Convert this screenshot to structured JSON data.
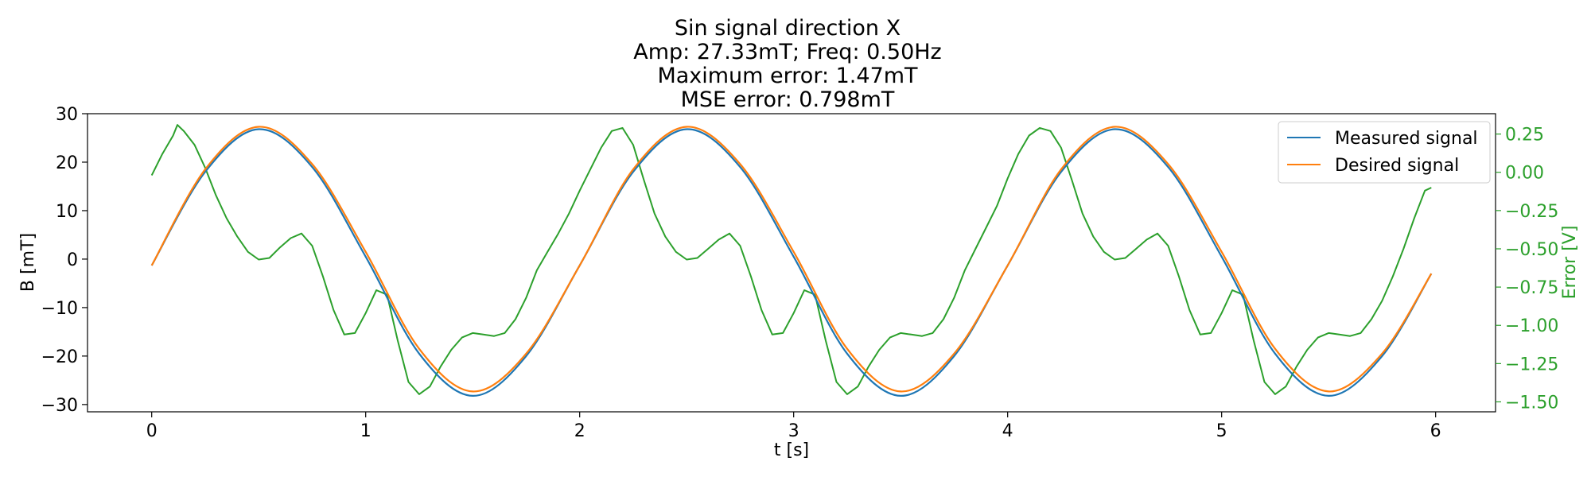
{
  "chart_data": {
    "type": "line",
    "title_lines": [
      "Sin signal direction X",
      "Amp: 27.33mT; Freq: 0.50Hz",
      "Maximum error: 1.47mT",
      "MSE error: 0.798mT"
    ],
    "xlabel": "t [s]",
    "ylabel": "B [mT]",
    "y2label": "Error [V]",
    "xlim": [
      -0.3,
      6.28
    ],
    "ylim": [
      -31.5,
      30
    ],
    "y2lim": [
      -1.565,
      0.383
    ],
    "xticks": [
      "0",
      "1",
      "2",
      "3",
      "4",
      "5",
      "6"
    ],
    "yticks": [
      "30",
      "20",
      "10",
      "0",
      "−10",
      "−20",
      "−30"
    ],
    "y2ticks": [
      "0.25",
      "0.00",
      "−0.25",
      "−0.50",
      "−0.75",
      "−1.00",
      "−1.25",
      "−1.50"
    ],
    "grid": false,
    "legend_position": "top-right",
    "colors": {
      "measured": "#1f77b4",
      "desired": "#ff7f0e",
      "error": "#2ca02c"
    },
    "series": [
      {
        "name": "Measured signal",
        "axis": "left",
        "x": [
          0,
          0.25,
          0.5,
          0.75,
          1.0,
          1.25,
          1.5,
          1.75,
          2.0,
          2.25,
          2.5,
          2.75,
          3.0,
          3.25,
          3.5,
          3.75,
          4.0,
          4.25,
          4.5,
          4.75,
          5.0,
          5.25,
          5.5,
          5.75,
          5.98
        ],
        "y": [
          -1.3,
          18.0,
          26.8,
          19.0,
          0.5,
          -19.5,
          -28.2,
          -20.0,
          -1.3,
          18.0,
          26.8,
          19.0,
          0.5,
          -19.5,
          -28.2,
          -20.0,
          -1.3,
          18.0,
          26.8,
          19.0,
          0.5,
          -19.5,
          -28.2,
          -20.0,
          -3.0
        ]
      },
      {
        "name": "Desired signal",
        "axis": "left",
        "x": [
          0,
          0.25,
          0.5,
          0.75,
          1.0,
          1.25,
          1.5,
          1.75,
          2.0,
          2.25,
          2.5,
          2.75,
          3.0,
          3.25,
          3.5,
          3.75,
          4.0,
          4.25,
          4.5,
          4.75,
          5.0,
          5.25,
          5.5,
          5.75,
          5.98
        ],
        "y": [
          -1.3,
          18.5,
          27.3,
          19.6,
          1.5,
          -18.5,
          -27.3,
          -19.5,
          -1.3,
          18.5,
          27.3,
          19.6,
          1.5,
          -18.5,
          -27.3,
          -19.5,
          -1.3,
          18.5,
          27.3,
          19.6,
          1.5,
          -18.5,
          -27.3,
          -19.5,
          -3.0
        ]
      },
      {
        "name": "Error",
        "axis": "right",
        "x": [
          0,
          0.05,
          0.1,
          0.12,
          0.15,
          0.2,
          0.25,
          0.3,
          0.35,
          0.4,
          0.45,
          0.5,
          0.55,
          0.6,
          0.65,
          0.7,
          0.75,
          0.8,
          0.85,
          0.9,
          0.95,
          1.0,
          1.05,
          1.1,
          1.15,
          1.2,
          1.25,
          1.3,
          1.35,
          1.4,
          1.45,
          1.5,
          1.55,
          1.6,
          1.65,
          1.7,
          1.75,
          1.8,
          1.85,
          1.9,
          1.95,
          2.0,
          2.05,
          2.1,
          2.15,
          2.2,
          2.25,
          2.3,
          2.35,
          2.4,
          2.45,
          2.5,
          2.55,
          2.6,
          2.65,
          2.7,
          2.75,
          2.8,
          2.85,
          2.9,
          2.95,
          3.0,
          3.05,
          3.1,
          3.15,
          3.2,
          3.25,
          3.3,
          3.35,
          3.4,
          3.45,
          3.5,
          3.55,
          3.6,
          3.65,
          3.7,
          3.75,
          3.8,
          3.85,
          3.9,
          3.95,
          4.0,
          4.05,
          4.1,
          4.15,
          4.2,
          4.25,
          4.3,
          4.35,
          4.4,
          4.45,
          4.5,
          4.55,
          4.6,
          4.65,
          4.7,
          4.75,
          4.8,
          4.85,
          4.9,
          4.95,
          5.0,
          5.05,
          5.1,
          5.15,
          5.2,
          5.25,
          5.3,
          5.35,
          5.4,
          5.45,
          5.5,
          5.55,
          5.6,
          5.65,
          5.7,
          5.75,
          5.8,
          5.85,
          5.9,
          5.95,
          5.98
        ],
        "y": [
          -0.02,
          0.12,
          0.24,
          0.31,
          0.27,
          0.18,
          0.03,
          -0.15,
          -0.3,
          -0.42,
          -0.52,
          -0.57,
          -0.56,
          -0.49,
          -0.43,
          -0.4,
          -0.48,
          -0.68,
          -0.9,
          -1.06,
          -1.05,
          -0.92,
          -0.77,
          -0.8,
          -1.1,
          -1.37,
          -1.45,
          -1.4,
          -1.27,
          -1.16,
          -1.08,
          -1.05,
          -1.06,
          -1.07,
          -1.05,
          -0.96,
          -0.82,
          -0.64,
          -0.52,
          -0.4,
          -0.27,
          -0.12,
          0.02,
          0.16,
          0.27,
          0.29,
          0.18,
          -0.05,
          -0.27,
          -0.42,
          -0.52,
          -0.57,
          -0.56,
          -0.5,
          -0.44,
          -0.4,
          -0.48,
          -0.68,
          -0.9,
          -1.06,
          -1.05,
          -0.92,
          -0.77,
          -0.8,
          -1.1,
          -1.37,
          -1.45,
          -1.4,
          -1.27,
          -1.16,
          -1.08,
          -1.05,
          -1.06,
          -1.07,
          -1.05,
          -0.96,
          -0.82,
          -0.64,
          -0.5,
          -0.36,
          -0.22,
          -0.04,
          0.12,
          0.24,
          0.29,
          0.27,
          0.16,
          -0.05,
          -0.27,
          -0.42,
          -0.52,
          -0.57,
          -0.56,
          -0.5,
          -0.44,
          -0.4,
          -0.48,
          -0.68,
          -0.9,
          -1.06,
          -1.05,
          -0.92,
          -0.77,
          -0.8,
          -1.1,
          -1.37,
          -1.45,
          -1.4,
          -1.27,
          -1.16,
          -1.08,
          -1.05,
          -1.06,
          -1.07,
          -1.05,
          -0.96,
          -0.84,
          -0.68,
          -0.5,
          -0.3,
          -0.12,
          -0.1
        ]
      }
    ]
  }
}
